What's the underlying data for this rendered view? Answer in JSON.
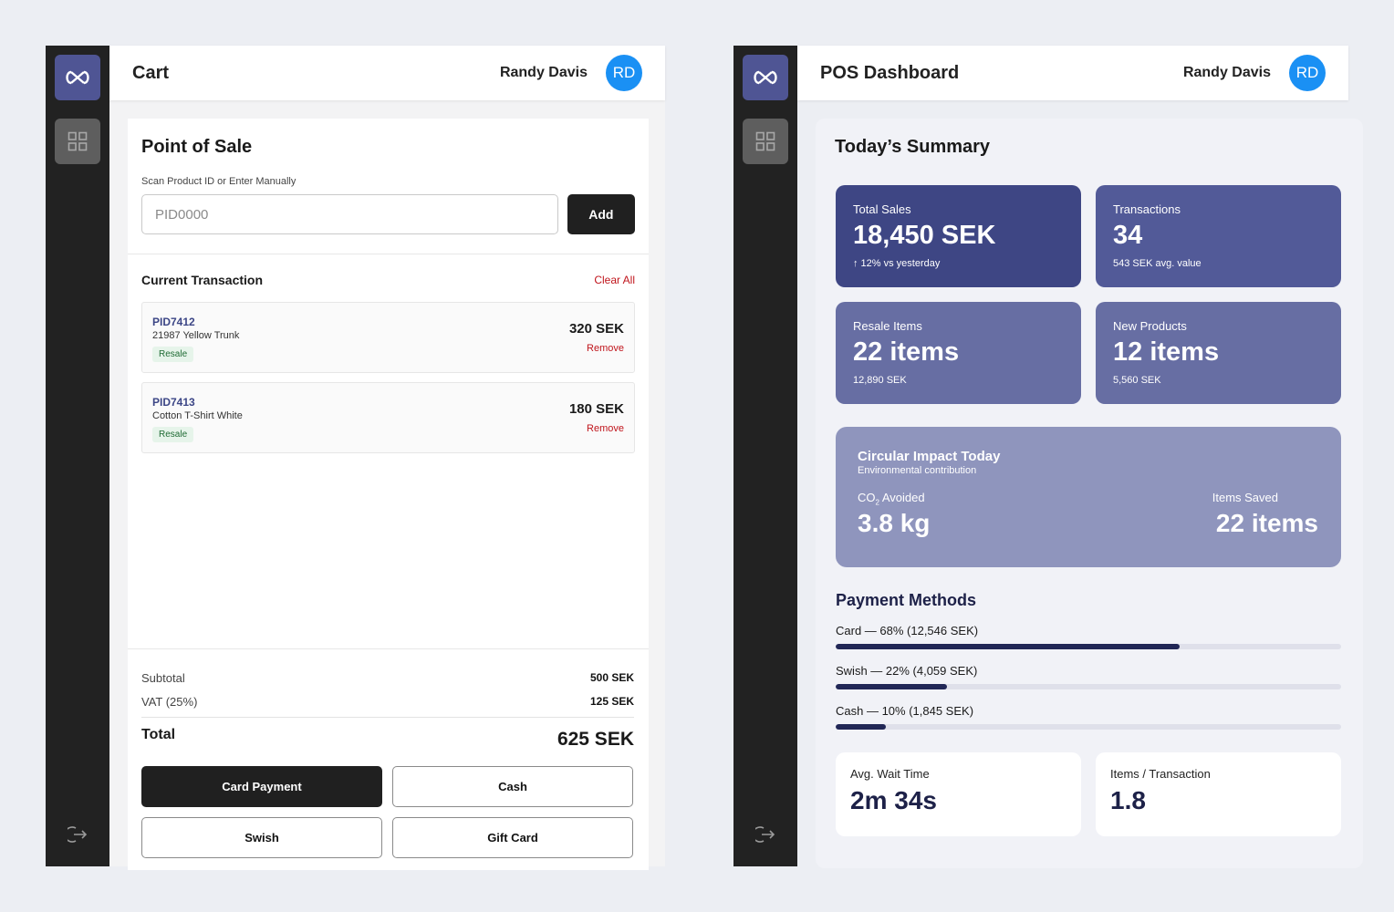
{
  "user": {
    "name": "Randy Davis",
    "initials": "RD"
  },
  "cart": {
    "title": "Cart",
    "pos_title": "Point of Sale",
    "scan_label": "Scan Product ID or Enter Manually",
    "scan_placeholder": "PID0000",
    "add_label": "Add",
    "transaction_title": "Current Transaction",
    "clear_all": "Clear All",
    "items": [
      {
        "pid": "PID7412",
        "name": "21987 Yellow Trunk",
        "tag": "Resale",
        "price": "320 SEK",
        "remove": "Remove"
      },
      {
        "pid": "PID7413",
        "name": "Cotton T-Shirt White",
        "tag": "Resale",
        "price": "180 SEK",
        "remove": "Remove"
      }
    ],
    "subtotal_label": "Subtotal",
    "subtotal_value": "500 SEK",
    "vat_label": "VAT (25%)",
    "vat_value": "125 SEK",
    "total_label": "Total",
    "total_value": "625 SEK",
    "payments": [
      "Card Payment",
      "Cash",
      "Swish",
      "Gift Card"
    ]
  },
  "dashboard": {
    "title": "POS Dashboard",
    "summary_title": "Today’s Summary",
    "stats": {
      "sales": {
        "label": "Total Sales",
        "value": "18,450 SEK",
        "sub": "↑ 12% vs yesterday"
      },
      "transactions": {
        "label": "Transactions",
        "value": "34",
        "sub": "543 SEK avg. value"
      },
      "resale": {
        "label": "Resale Items",
        "value": "22 items",
        "sub": "12,890 SEK"
      },
      "new_products": {
        "label": "New Products",
        "value": "12 items",
        "sub": "5,560 SEK"
      }
    },
    "impact": {
      "title": "Circular Impact Today",
      "subtitle": "Environmental contribution",
      "co2_label_main": "CO",
      "co2_label_sub": "2",
      "co2_label_rest": " Avoided",
      "co2_value": "3.8 kg",
      "saved_label": "Items Saved",
      "saved_value": "22 items"
    },
    "payment_methods_title": "Payment Methods",
    "payment_methods": [
      {
        "label": "Card — 68% (12,546 SEK)",
        "percent": 68
      },
      {
        "label": "Swish — 22% (4,059 SEK)",
        "percent": 22
      },
      {
        "label": "Cash — 10% (1,845 SEK)",
        "percent": 10
      }
    ],
    "wait": {
      "label": "Avg. Wait Time",
      "value": "2m 34s"
    },
    "items_per_txn": {
      "label": "Items / Transaction",
      "value": "1.8"
    }
  },
  "colors": {
    "accent": "#4f5594",
    "avatar": "#1a90f4",
    "danger": "#c0151c",
    "bar_fill": "#212756"
  },
  "icons": [
    "infinity-logo-icon",
    "grid-icon",
    "logout-icon"
  ]
}
